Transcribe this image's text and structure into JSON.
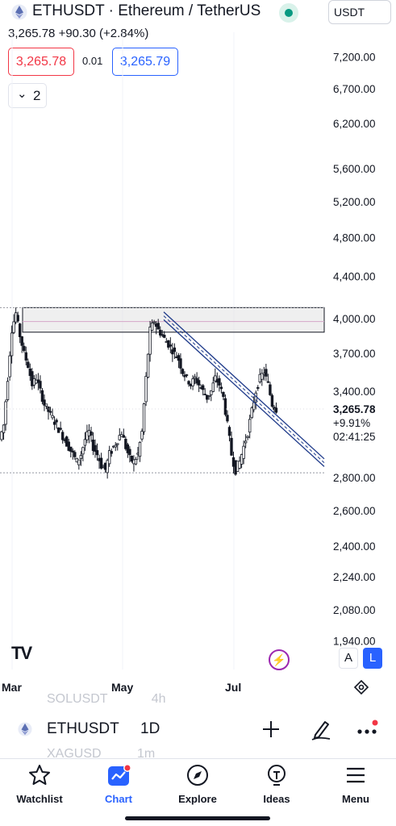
{
  "header": {
    "symbol_title": "ETHUSDT · Ethereum / TetherUS",
    "currency": "USDT",
    "last_price": "3,265.78",
    "change": "+90.30",
    "change_pct": "(+2.84%)",
    "bid": "3,265.78",
    "spread": "0.01",
    "ask": "3,265.79",
    "indicator_count": "2"
  },
  "colors": {
    "up": "#089981",
    "down": "#f23645",
    "accent": "#2962ff",
    "candle": "#131722",
    "trendline": "#1e3a8a",
    "zone_fill": "#e5e5e5"
  },
  "chart_data": {
    "type": "candlestick",
    "price_scale": "log",
    "price_axis_labels": [
      "7,200.00",
      "6,700.00",
      "6,200.00",
      "5,600.00",
      "5,200.00",
      "4,800.00",
      "4,400.00",
      "4,000.00",
      "3,700.00",
      "3,400.00",
      "2,800.00",
      "2,600.00",
      "2,400.00",
      "2,240.00",
      "2,080.00",
      "1,940.00"
    ],
    "price_axis_values": [
      7200,
      6700,
      6200,
      5600,
      5200,
      4800,
      4400,
      4000,
      3700,
      3400,
      2800,
      2600,
      2400,
      2240,
      2080,
      1940
    ],
    "time_axis_labels": [
      "Mar",
      "May",
      "Jul"
    ],
    "current_price_label": "3,265.78",
    "current_change_label": "+9.91%",
    "countdown_label": "02:41:25",
    "resistance_zone": {
      "low": 3880,
      "high": 4100
    },
    "horizontal_line": 2830,
    "trend_channel": {
      "start_price_top": 4060,
      "start_price_bottom": 3990,
      "end_price_top": 2920,
      "end_price_bottom": 2870
    },
    "close_trend": [
      3050,
      3150,
      3500,
      3900,
      4050,
      3850,
      3700,
      3600,
      3450,
      3500,
      3400,
      3300,
      3250,
      3200,
      3150,
      3100,
      3050,
      3000,
      2950,
      2900,
      2950,
      3050,
      3100,
      3000,
      2950,
      2880,
      2850,
      2950,
      3000,
      3050,
      3100,
      3000,
      2920,
      2900,
      2950,
      3100,
      3500,
      3900,
      3980,
      3900,
      3850,
      3800,
      3750,
      3700,
      3650,
      3550,
      3500,
      3450,
      3500,
      3450,
      3400,
      3350,
      3400,
      3500,
      3450,
      3350,
      3150,
      2950,
      2850,
      2900,
      3000,
      3100,
      3250,
      3400,
      3500,
      3550,
      3450,
      3300,
      3265
    ]
  },
  "chart_footer": {
    "logo": "TV",
    "a_button": "A",
    "l_button": "L"
  },
  "symbol_bar": {
    "ghost_above": "SOLUSDT",
    "ghost_above_interval": "4h",
    "symbol": "ETHUSDT",
    "interval": "1D",
    "ghost_below": "XAGUSD",
    "ghost_below_interval": "1m"
  },
  "nav": {
    "items": [
      {
        "label": "Watchlist",
        "icon": "star-icon"
      },
      {
        "label": "Chart",
        "icon": "chart-icon"
      },
      {
        "label": "Explore",
        "icon": "compass-icon"
      },
      {
        "label": "Ideas",
        "icon": "lightbulb-icon"
      },
      {
        "label": "Menu",
        "icon": "hamburger-icon"
      }
    ]
  }
}
